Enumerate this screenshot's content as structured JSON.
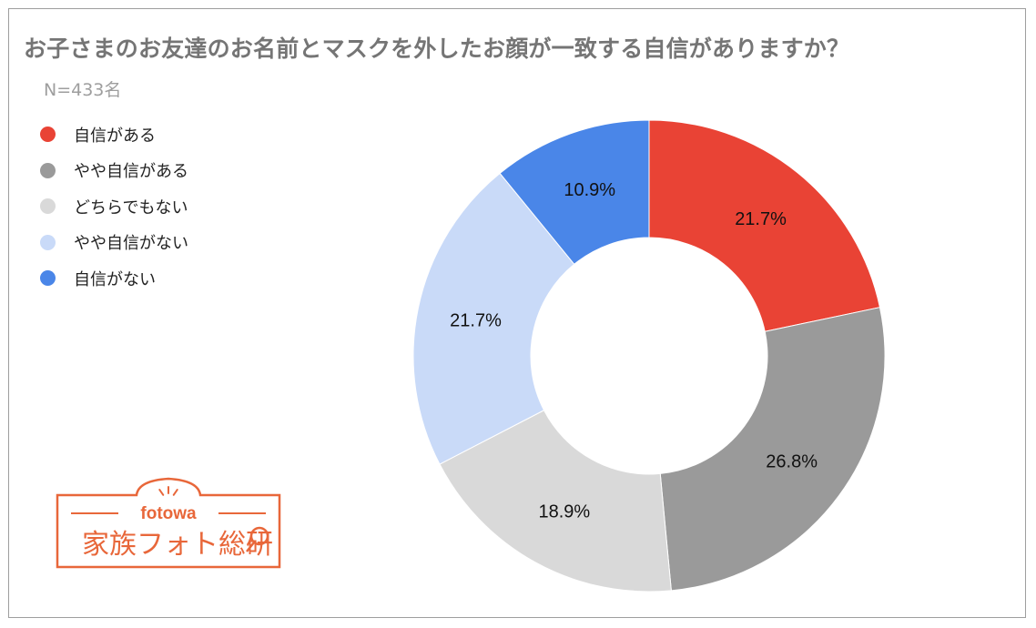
{
  "title": "お子さまのお友達のお名前とマスクを外したお顔が一致する自信がありますか？",
  "subtitle": "N=433名",
  "legend": [
    {
      "label": "自信がある",
      "color": "#e94335"
    },
    {
      "label": "やや自信がある",
      "color": "#9a9a9a"
    },
    {
      "label": "どちらでもない",
      "color": "#d9d9d9"
    },
    {
      "label": "やや自信がない",
      "color": "#c9daf8"
    },
    {
      "label": "自信がない",
      "color": "#4a86e8"
    }
  ],
  "chart_data": {
    "type": "pie",
    "donut": true,
    "title": "お子さまのお友達のお名前とマスクを外したお顔が一致する自信がありますか？",
    "subtitle": "N=433名",
    "legend_position": "left",
    "categories": [
      "自信がある",
      "やや自信がある",
      "どちらでもない",
      "やや自信がない",
      "自信がない"
    ],
    "values": [
      21.7,
      26.8,
      18.9,
      21.7,
      10.9
    ],
    "labels": [
      "21.7%",
      "26.8%",
      "18.9%",
      "21.7%",
      "10.9%"
    ],
    "colors": [
      "#e94335",
      "#9a9a9a",
      "#d9d9d9",
      "#c9daf8",
      "#4a86e8"
    ]
  },
  "logo": {
    "brand": "fotowa",
    "name": "家族フォト総研",
    "color": "#e8673a"
  }
}
